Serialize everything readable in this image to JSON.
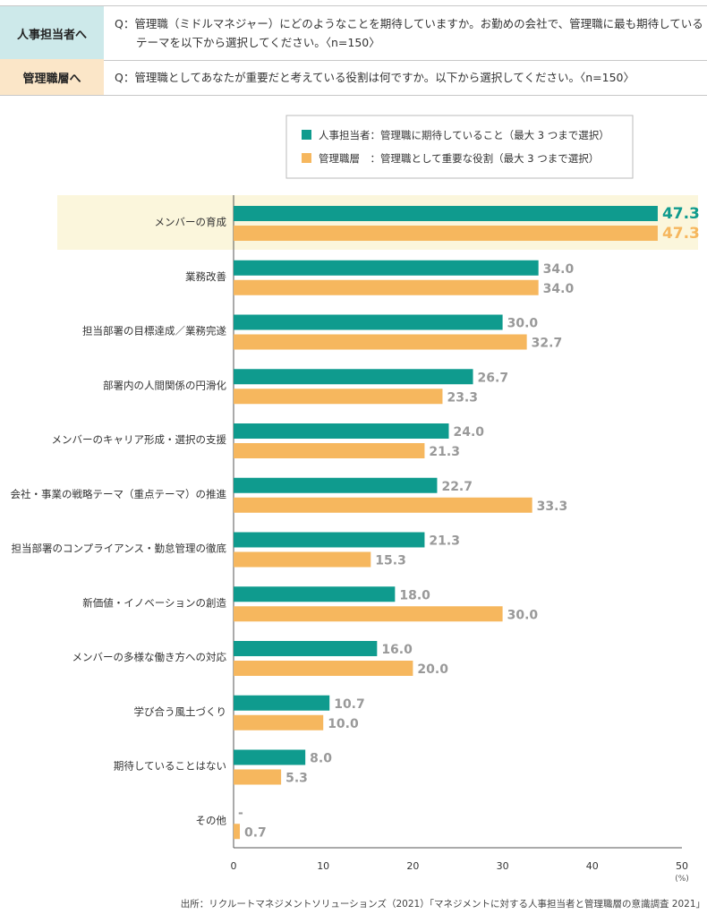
{
  "questions": {
    "hr": {
      "label": "人事担当者へ",
      "text": "Q：管理職（ミドルマネジャー）にどのようなことを期待していますか。お勤めの会社で、管理職に最も期待しているテーマを以下から選択してください。〈n=150〉"
    },
    "mgr": {
      "label": "管理職層へ",
      "text": "Q：管理職としてあなたが重要だと考えている役割は何ですか。以下から選択してください。〈n=150〉"
    }
  },
  "chart_data": {
    "type": "bar",
    "orientation": "horizontal",
    "title": "",
    "xlabel": "",
    "ylabel": "",
    "unit": "(%)",
    "xlim": [
      0,
      50
    ],
    "xticks": [
      0,
      10,
      20,
      30,
      40,
      50
    ],
    "legend": {
      "placement": "top-right",
      "entries": [
        "人事担当者：管理職に期待していること（最大 3 つまで選択）",
        "管理職層　：管理職として重要な役割（最大 3 つまで選択）"
      ]
    },
    "categories": [
      "メンバーの育成",
      "業務改善",
      "担当部署の目標達成／業務完遂",
      "部署内の人間関係の円滑化",
      "メンバーのキャリア形成・選択の支援",
      "会社・事業の戦略テーマ（重点テーマ）の推進",
      "担当部署のコンプライアンス・勤怠管理の徹底",
      "新価値・イノベーションの創造",
      "メンバーの多様な働き方への対応",
      "学び合う風土づくり",
      "期待していることはない",
      "その他"
    ],
    "highlight_index": 0,
    "series": [
      {
        "name": "人事担当者",
        "color": "#0f9b8e",
        "values": [
          47.3,
          34.0,
          30.0,
          26.7,
          24.0,
          22.7,
          21.3,
          18.0,
          16.0,
          10.7,
          8.0,
          null
        ],
        "labels": [
          "47.3",
          "34.0",
          "30.0",
          "26.7",
          "24.0",
          "22.7",
          "21.3",
          "18.0",
          "16.0",
          "10.7",
          "8.0",
          "-"
        ]
      },
      {
        "name": "管理職層",
        "color": "#f6b75e",
        "values": [
          47.3,
          34.0,
          32.7,
          23.3,
          21.3,
          33.3,
          15.3,
          30.0,
          20.0,
          10.0,
          5.3,
          0.7
        ],
        "labels": [
          "47.3",
          "34.0",
          "32.7",
          "23.3",
          "21.3",
          "33.3",
          "15.3",
          "30.0",
          "20.0",
          "10.0",
          "5.3",
          "0.7"
        ]
      }
    ],
    "colors": {
      "highlight_background": "#fbf6dc",
      "axis": "#555555",
      "value_label": "#999999"
    }
  },
  "source": "出所：リクルートマネジメントソリューションズ（2021）「マネジメントに対する人事担当者と管理職層の意識調査 2021」"
}
